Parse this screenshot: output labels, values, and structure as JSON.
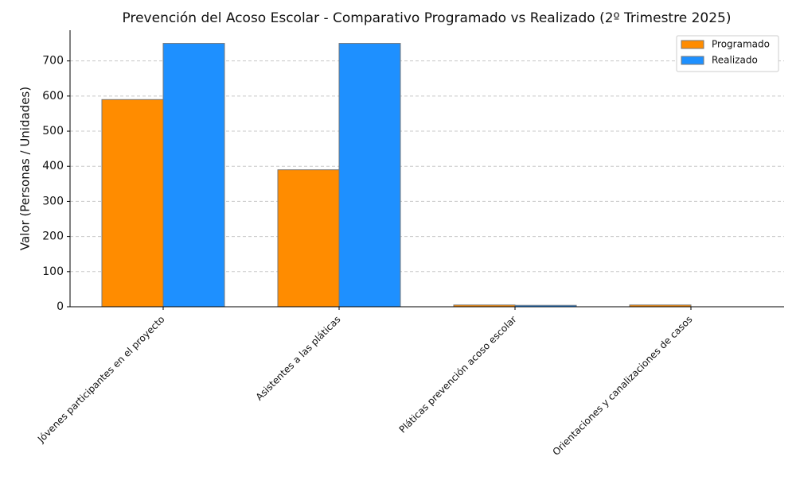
{
  "chart_data": {
    "type": "bar",
    "title": "Prevención del Acoso Escolar - Comparativo Programado vs Realizado (2º Trimestre 2025)",
    "y_label": "Valor (Personas / Unidades)",
    "categories": [
      "Jóvenes participantes en el proyecto",
      "Asistentes a las pláticas",
      "Pláticas prevención acoso escolar",
      "Orientaciones y canalizaciones de casos"
    ],
    "series": [
      {
        "name": "Programado",
        "color": "#ff8c00",
        "values": [
          590,
          390,
          5,
          5
        ]
      },
      {
        "name": "Realizado",
        "color": "#1e90ff",
        "values": [
          750,
          750,
          4,
          0
        ]
      }
    ],
    "ylim": [
      0,
      787.5
    ],
    "yticks": [
      0,
      100,
      200,
      300,
      400,
      500,
      600,
      700
    ],
    "grid": true,
    "legend": "upper-right"
  }
}
